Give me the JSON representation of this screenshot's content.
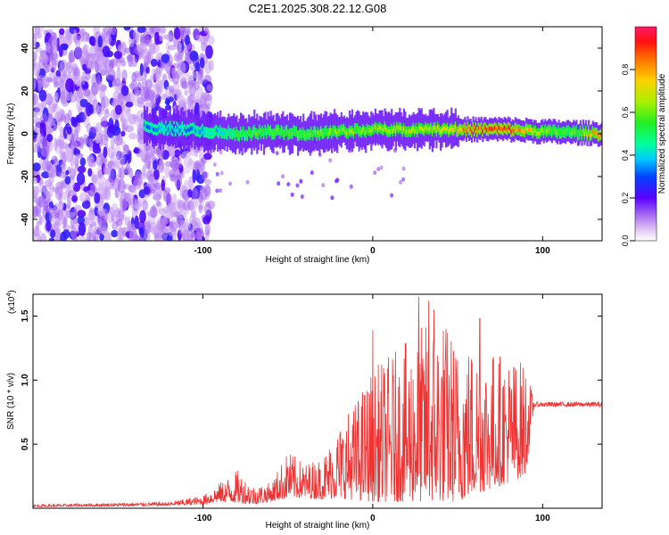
{
  "title": "C2E1.2025.308.22.12.G08",
  "colors": {
    "snr_line": "#ee3333",
    "axis": "#000000"
  },
  "chart_data": [
    {
      "type": "heatmap",
      "title": "C2E1.2025.308.22.12.G08",
      "xlabel": "Height of straight line (km)",
      "ylabel": "Frequency (Hz)",
      "xlim": [
        -200,
        135
      ],
      "ylim": [
        -50,
        50
      ],
      "xticks": [
        -100,
        0,
        100
      ],
      "xtick_labels": [
        "-100",
        "0",
        "100"
      ],
      "yticks": [
        -40,
        -20,
        0,
        20,
        40
      ],
      "ytick_labels": [
        "-40",
        "-20",
        "0",
        "20",
        "40"
      ],
      "ridge": {
        "description_points_x": [
          -135,
          -110,
          -95,
          -80,
          -60,
          -40,
          -20,
          0,
          20,
          40,
          60,
          80,
          100,
          120,
          135
        ],
        "center_freq": [
          3,
          2,
          1,
          0,
          1,
          0,
          1,
          2,
          2,
          2,
          2,
          2,
          1,
          0.5,
          0
        ],
        "amplitude": [
          0.35,
          0.35,
          0.4,
          0.5,
          0.55,
          0.55,
          0.6,
          0.62,
          0.65,
          0.7,
          0.85,
          0.9,
          0.6,
          0.55,
          0.9
        ]
      },
      "noise_region_x": [
        -200,
        -95
      ],
      "colorbar": {
        "label": "Normalized spectral amplitude",
        "range": [
          0,
          1
        ],
        "ticks": [
          0.0,
          0.2,
          0.4,
          0.6,
          0.8
        ],
        "tick_labels": [
          "0.0",
          "0.2",
          "0.4",
          "0.6",
          "0.8"
        ]
      }
    },
    {
      "type": "line",
      "xlabel": "Height of straight line (km)",
      "ylabel": "SNR (10 * v/v)",
      "scale_label": "(x10",
      "scale_exponent": "4",
      "scale_suffix": ")",
      "xlim": [
        -200,
        135
      ],
      "ylim": [
        0,
        1.67
      ],
      "xticks": [
        -100,
        0,
        100
      ],
      "xtick_labels": [
        "-100",
        "0",
        "100"
      ],
      "yticks": [
        0.5,
        1.0,
        1.5
      ],
      "ytick_labels": [
        "0.5",
        "1.0",
        "1.5"
      ],
      "envelope": {
        "x": [
          -200,
          -120,
          -100,
          -90,
          -80,
          -70,
          -60,
          -50,
          -40,
          -30,
          -20,
          -10,
          0,
          10,
          20,
          30,
          40,
          50,
          60,
          70,
          80,
          90,
          95,
          100,
          135
        ],
        "lower": [
          0.01,
          0.02,
          0.03,
          0.05,
          0.04,
          0.03,
          0.05,
          0.08,
          0.08,
          0.07,
          0.08,
          0.06,
          0.05,
          0.05,
          0.05,
          0.05,
          0.05,
          0.05,
          0.1,
          0.15,
          0.2,
          0.25,
          0.8,
          0.8,
          0.8
        ],
        "upper": [
          0.03,
          0.05,
          0.1,
          0.2,
          0.3,
          0.18,
          0.2,
          0.45,
          0.35,
          0.4,
          0.65,
          0.85,
          1.1,
          1.2,
          1.3,
          1.45,
          1.55,
          1.3,
          1.3,
          1.25,
          1.2,
          1.15,
          0.83,
          0.83,
          0.83
        ],
        "peaks": [
          {
            "x": 0,
            "y": 1.39
          },
          {
            "x": 27,
            "y": 1.65
          },
          {
            "x": 33,
            "y": 1.62
          },
          {
            "x": 63,
            "y": 1.48
          },
          {
            "x": 36,
            "y": 1.55
          }
        ]
      },
      "plateau": {
        "x_start": 95,
        "x_end": 135,
        "value": 0.81
      }
    }
  ]
}
